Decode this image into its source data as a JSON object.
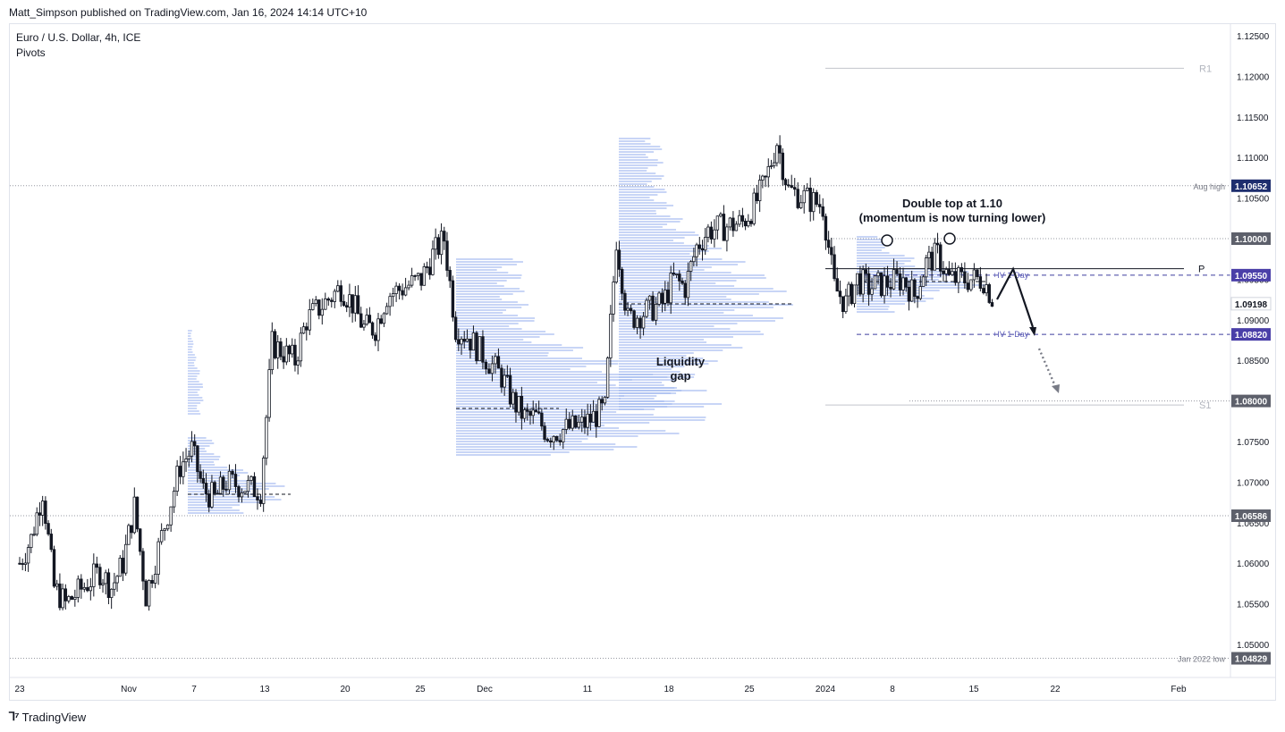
{
  "header": {
    "published": "Matt_Simpson published on TradingView.com, Jan 16, 2024 14:14 UTC+10"
  },
  "legend": {
    "symbol": "Euro / U.S. Dollar, 4h, ICE",
    "indicator": "Pivots"
  },
  "footer": {
    "brand": "TradingView",
    "logo_icon": "tradingview-logo-icon"
  },
  "colors": {
    "candle": "#131722",
    "volume_profile": "#9db5ef",
    "pivot_line": "#131722",
    "iv_line": "#3f3f9f",
    "iv_label_bg": "#4a3fa8",
    "grey_label_bg": "#787b86",
    "navy_label_bg": "#1e2e6e",
    "dotted": "#9598a1"
  },
  "chart_data": {
    "type": "candlestick",
    "title": "Euro / U.S. Dollar, 4h, ICE",
    "ylim": [
      1.0465,
      1.1265
    ],
    "y_ticks": [
      "1.12500",
      "1.12000",
      "1.11500",
      "1.11000",
      "1.10500",
      "1.10000",
      "1.09500",
      "1.09000",
      "1.08500",
      "1.08000",
      "1.07500",
      "1.07000",
      "1.06500",
      "1.06000",
      "1.05500",
      "1.05000"
    ],
    "x_ticks": [
      "23",
      "Nov",
      "7",
      "13",
      "20",
      "25",
      "Dec",
      "11",
      "18",
      "25",
      "2024",
      "8",
      "15",
      "22",
      "Feb"
    ],
    "price_series": [
      [
        "2023-10-23",
        1.06
      ],
      [
        "2023-10-24",
        1.063
      ],
      [
        "2023-10-25",
        1.069
      ],
      [
        "2023-10-26",
        1.057
      ],
      [
        "2023-10-27",
        1.055
      ],
      [
        "2023-10-30",
        1.059
      ],
      [
        "2023-10-31",
        1.057
      ],
      [
        "2023-11-01",
        1.06
      ],
      [
        "2023-11-02",
        1.067
      ],
      [
        "2023-11-03",
        1.056
      ],
      [
        "2023-11-06",
        1.072
      ],
      [
        "2023-11-07",
        1.074
      ],
      [
        "2023-11-08",
        1.069
      ],
      [
        "2023-11-09",
        1.068
      ],
      [
        "2023-11-10",
        1.07
      ],
      [
        "2023-11-13",
        1.069
      ],
      [
        "2023-11-14",
        1.087
      ],
      [
        "2023-11-15",
        1.086
      ],
      [
        "2023-11-16",
        1.085
      ],
      [
        "2023-11-17",
        1.09
      ],
      [
        "2023-11-20",
        1.094
      ],
      [
        "2023-11-21",
        1.092
      ],
      [
        "2023-11-22",
        1.089
      ],
      [
        "2023-11-23",
        1.089
      ],
      [
        "2023-11-24",
        1.093
      ],
      [
        "2023-11-27",
        1.095
      ],
      [
        "2023-11-28",
        1.098
      ],
      [
        "2023-11-29",
        1.1
      ],
      [
        "2023-11-30",
        1.089
      ],
      [
        "2023-12-01",
        1.088
      ],
      [
        "2023-12-04",
        1.083
      ],
      [
        "2023-12-05",
        1.08
      ],
      [
        "2023-12-06",
        1.078
      ],
      [
        "2023-12-07",
        1.078
      ],
      [
        "2023-12-08",
        1.076
      ],
      [
        "2023-12-11",
        1.077
      ],
      [
        "2023-12-12",
        1.078
      ],
      [
        "2023-12-13",
        1.079
      ],
      [
        "2023-12-14",
        1.1
      ],
      [
        "2023-12-15",
        1.09
      ],
      [
        "2023-12-18",
        1.092
      ],
      [
        "2023-12-19",
        1.095
      ],
      [
        "2023-12-20",
        1.094
      ],
      [
        "2023-12-21",
        1.099
      ],
      [
        "2023-12-22",
        1.101
      ],
      [
        "2023-12-25",
        1.102
      ],
      [
        "2023-12-26",
        1.104
      ],
      [
        "2023-12-27",
        1.107
      ],
      [
        "2023-12-28",
        1.112
      ],
      [
        "2023-12-29",
        1.106
      ],
      [
        "2024-01-01",
        1.104
      ],
      [
        "2024-01-02",
        1.094
      ],
      [
        "2024-01-03",
        1.092
      ],
      [
        "2024-01-04",
        1.095
      ],
      [
        "2024-01-05",
        1.094
      ],
      [
        "2024-01-08",
        1.095
      ],
      [
        "2024-01-09",
        1.093
      ],
      [
        "2024-01-10",
        1.097
      ],
      [
        "2024-01-11",
        1.098
      ],
      [
        "2024-01-12",
        1.095
      ],
      [
        "2024-01-15",
        1.095
      ],
      [
        "2024-01-16",
        1.092
      ]
    ],
    "levels": [
      {
        "name": "R1",
        "value": 1.121
      },
      {
        "name": "Aug high",
        "value": 1.10652
      },
      {
        "name": "1.10000",
        "value": 1.1
      },
      {
        "name": "P",
        "value": 1.0963
      },
      {
        "name": "+IV 1-Day",
        "value": 1.0955
      },
      {
        "name": "+IV 1-Day",
        "value": 1.0882
      },
      {
        "name": "S1",
        "value": 1.0795
      },
      {
        "name": "1.08000",
        "value": 1.08
      },
      {
        "name": "1.06586",
        "value": 1.06586
      },
      {
        "name": "Jan 2022 low",
        "value": 1.04829
      }
    ],
    "price_labels": [
      {
        "text": "1.10652",
        "value": 1.10652,
        "style": "navy"
      },
      {
        "text": "1.10000",
        "value": 1.1,
        "style": "grey"
      },
      {
        "text": "1.09550",
        "value": 1.0955,
        "style": "iv"
      },
      {
        "text": "1.09198",
        "value": 1.09198,
        "style": "white"
      },
      {
        "text": "1.08820",
        "value": 1.0882,
        "style": "iv"
      },
      {
        "text": "1.08000",
        "value": 1.08,
        "style": "grey"
      },
      {
        "text": "1.06586",
        "value": 1.06586,
        "style": "grey"
      },
      {
        "text": "1.04829",
        "value": 1.04829,
        "style": "grey"
      }
    ],
    "annotations": [
      {
        "text": "Double top at 1.10"
      },
      {
        "text": "(momentum is now turning lower)"
      },
      {
        "text": "Liquidity"
      },
      {
        "text": "gap"
      }
    ],
    "level_labels": {
      "r1": "R1",
      "aug_high": "Aug high",
      "p": "P",
      "iv_upper": "+IV 1-Day",
      "iv_lower": "+IV 1-Day",
      "s1": "S1",
      "jan_low": "Jan 2022 low"
    }
  }
}
